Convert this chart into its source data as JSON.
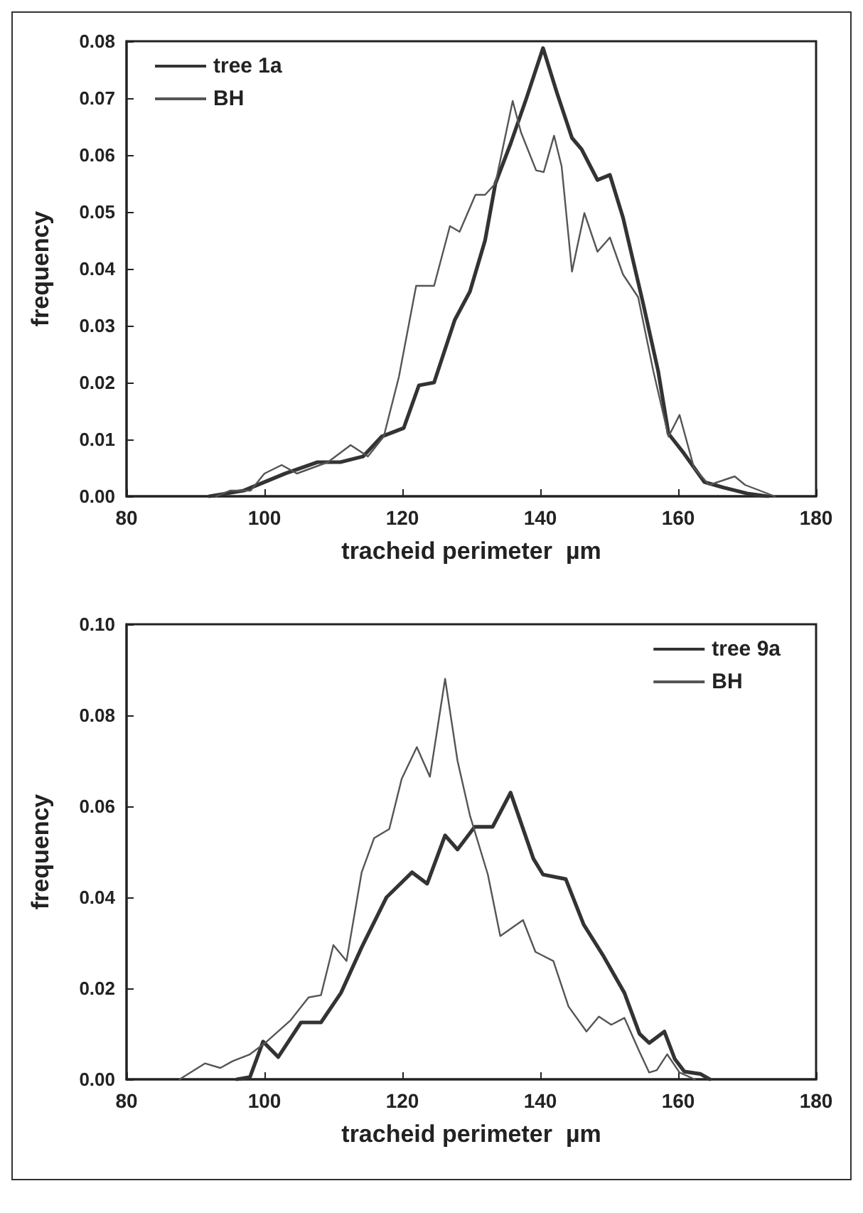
{
  "chart_data": [
    {
      "type": "line",
      "xlabel": "tracheid perimeter  µm",
      "ylabel": "frequency",
      "xlim": [
        80,
        180
      ],
      "xticks": [
        80,
        100,
        120,
        140,
        160,
        180
      ],
      "ylim": [
        0,
        0.08
      ],
      "yticks": [
        {
          "value": 0,
          "label": "0.00"
        },
        {
          "value": 0.01,
          "label": "0.01"
        },
        {
          "value": 0.02,
          "label": "0.02"
        },
        {
          "value": 0.03,
          "label": "0.03"
        },
        {
          "value": 0.04,
          "label": "0.04"
        },
        {
          "value": 0.05,
          "label": "0.05"
        },
        {
          "value": 0.06,
          "label": "0.06"
        },
        {
          "value": 0.07,
          "label": "0.07"
        },
        {
          "value": 0.08,
          "label": "0.08"
        }
      ],
      "grid": false,
      "legend": "top left",
      "marker": "none",
      "line_style": "solid",
      "series": [
        {
          "name": "tree 1a",
          "color": "#333333",
          "x": [
            92,
            97,
            103,
            107.7,
            111,
            114.3,
            117,
            120.2,
            122.4,
            124.6,
            127.6,
            129.8,
            132,
            133.5,
            135.7,
            138,
            140.4,
            142.4,
            144.6,
            146,
            148.3,
            150.1,
            152,
            154.9,
            157.1,
            158.6,
            160.8,
            163.8,
            166.7,
            170,
            173
          ],
          "values": [
            0,
            0.001,
            0.004,
            0.006,
            0.006,
            0.007,
            0.0105,
            0.012,
            0.0195,
            0.02,
            0.031,
            0.036,
            0.045,
            0.055,
            0.062,
            0.07,
            0.0788,
            0.071,
            0.063,
            0.061,
            0.0556,
            0.0565,
            0.049,
            0.034,
            0.022,
            0.011,
            0.0076,
            0.0025,
            0.0015,
            0.0005,
            0
          ]
        },
        {
          "name": "BH",
          "color": "#555555",
          "x": [
            93,
            95,
            98,
            100,
            102.5,
            104.7,
            109.2,
            112.5,
            115,
            117.3,
            119.5,
            122,
            124.6,
            126.9,
            128.3,
            130.6,
            132,
            133.5,
            136,
            137.2,
            139.4,
            140.5,
            142,
            143.1,
            144.6,
            146.4,
            148.3,
            150.1,
            152,
            154.2,
            156.4,
            158.6,
            160.2,
            162.3,
            164.5,
            168.2,
            169.7,
            174
          ],
          "values": [
            0,
            0.001,
            0.001,
            0.004,
            0.0055,
            0.004,
            0.006,
            0.009,
            0.007,
            0.0105,
            0.021,
            0.037,
            0.037,
            0.0475,
            0.0465,
            0.053,
            0.053,
            0.055,
            0.0695,
            0.064,
            0.0573,
            0.057,
            0.0634,
            0.058,
            0.0395,
            0.0498,
            0.043,
            0.0455,
            0.039,
            0.035,
            0.022,
            0.0105,
            0.0143,
            0.005,
            0.002,
            0.0035,
            0.002,
            0
          ]
        }
      ]
    },
    {
      "type": "line",
      "xlabel": "tracheid perimeter  µm",
      "ylabel": "frequency",
      "xlim": [
        80,
        180
      ],
      "xticks": [
        80,
        100,
        120,
        140,
        160,
        180
      ],
      "ylim": [
        0,
        0.1
      ],
      "yticks": [
        {
          "value": 0,
          "label": "0.00"
        },
        {
          "value": 0.02,
          "label": "0.02"
        },
        {
          "value": 0.04,
          "label": "0.04"
        },
        {
          "value": 0.06,
          "label": "0.06"
        },
        {
          "value": 0.08,
          "label": "0.08"
        },
        {
          "value": 0.1,
          "label": "0.10"
        }
      ],
      "grid": false,
      "legend": "top right",
      "marker": "none",
      "line_style": "solid",
      "series": [
        {
          "name": "tree 9a",
          "color": "#333333",
          "x": [
            96,
            97.9,
            99.8,
            102,
            105.3,
            108.2,
            111.1,
            114.1,
            117.7,
            121.4,
            123.6,
            126.2,
            128,
            130.5,
            133.1,
            135.7,
            139,
            140.4,
            143.7,
            146.3,
            149.2,
            152.2,
            154.4,
            155.8,
            158,
            159.5,
            160.9,
            163.2,
            164.6
          ],
          "values": [
            0,
            0.0005,
            0.0083,
            0.0049,
            0.0125,
            0.0125,
            0.019,
            0.029,
            0.04,
            0.0455,
            0.043,
            0.0536,
            0.0505,
            0.0555,
            0.0555,
            0.063,
            0.0485,
            0.045,
            0.044,
            0.034,
            0.027,
            0.019,
            0.01,
            0.008,
            0.0105,
            0.0045,
            0.0017,
            0.0012,
            0
          ]
        },
        {
          "name": "BH",
          "color": "#555555",
          "x": [
            87.7,
            91.4,
            93.6,
            95.4,
            97.9,
            100.1,
            103.8,
            106.4,
            108.2,
            110,
            111.9,
            114.1,
            115.9,
            118.1,
            119.9,
            122.1,
            124,
            126.2,
            128,
            129.8,
            132.4,
            134.2,
            137.5,
            139.3,
            141.9,
            144.1,
            146.7,
            148.5,
            150.3,
            152.2,
            154.4,
            155.8,
            156.9,
            158.4,
            160.2,
            162.4
          ],
          "values": [
            0,
            0.0035,
            0.0025,
            0.004,
            0.0055,
            0.008,
            0.013,
            0.018,
            0.0185,
            0.0295,
            0.026,
            0.0455,
            0.053,
            0.055,
            0.066,
            0.073,
            0.0665,
            0.088,
            0.07,
            0.058,
            0.045,
            0.0315,
            0.035,
            0.028,
            0.026,
            0.016,
            0.0105,
            0.0138,
            0.012,
            0.0135,
            0.006,
            0.0015,
            0.002,
            0.0055,
            0.0015,
            0
          ]
        }
      ]
    }
  ]
}
